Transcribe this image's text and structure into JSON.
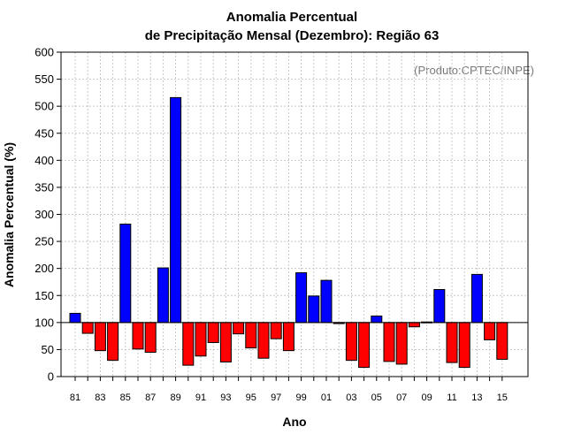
{
  "chart_data": {
    "type": "bar",
    "title_line1": "Anomalia Percentual",
    "title_line2": "de Precipitação Mensal (Dezembro): Região 63",
    "xlabel": "Ano",
    "ylabel": "Anomalia Percentual (%)",
    "annotation": "(Produto:CPTEC/INPE)",
    "ylim": [
      0,
      600
    ],
    "yticks": [
      "0",
      "50",
      "100",
      "150",
      "200",
      "250",
      "300",
      "350",
      "400",
      "450",
      "500",
      "550",
      "600"
    ],
    "baseline": 100,
    "categories": [
      "1981",
      "1982",
      "1983",
      "1984",
      "1985",
      "1986",
      "1987",
      "1988",
      "1989",
      "1990",
      "1991",
      "1992",
      "1993",
      "1994",
      "1995",
      "1996",
      "1997",
      "1998",
      "1999",
      "2000",
      "2001",
      "2002",
      "2003",
      "2004",
      "2005",
      "2006",
      "2007",
      "2008",
      "2009",
      "2010",
      "2011",
      "2012",
      "2013",
      "2014",
      "2015"
    ],
    "tick_labels": [
      "81",
      "",
      "83",
      "",
      "85",
      "",
      "87",
      "",
      "89",
      "",
      "91",
      "",
      "93",
      "",
      "95",
      "",
      "97",
      "",
      "99",
      "",
      "01",
      "",
      "03",
      "",
      "05",
      "",
      "07",
      "",
      "09",
      "",
      "11",
      "",
      "13",
      "",
      "15"
    ],
    "values": [
      117,
      80,
      48,
      30,
      282,
      51,
      45,
      201,
      516,
      21,
      38,
      63,
      27,
      79,
      53,
      34,
      70,
      48,
      192,
      149,
      178,
      98,
      30,
      17,
      112,
      28,
      23,
      92,
      101,
      161,
      26,
      17,
      189,
      68,
      32
    ],
    "colors": {
      "above": "#0000ff",
      "below": "#ff0000",
      "grid": "#c8c8c8",
      "axis": "#000000"
    },
    "grid": true
  }
}
